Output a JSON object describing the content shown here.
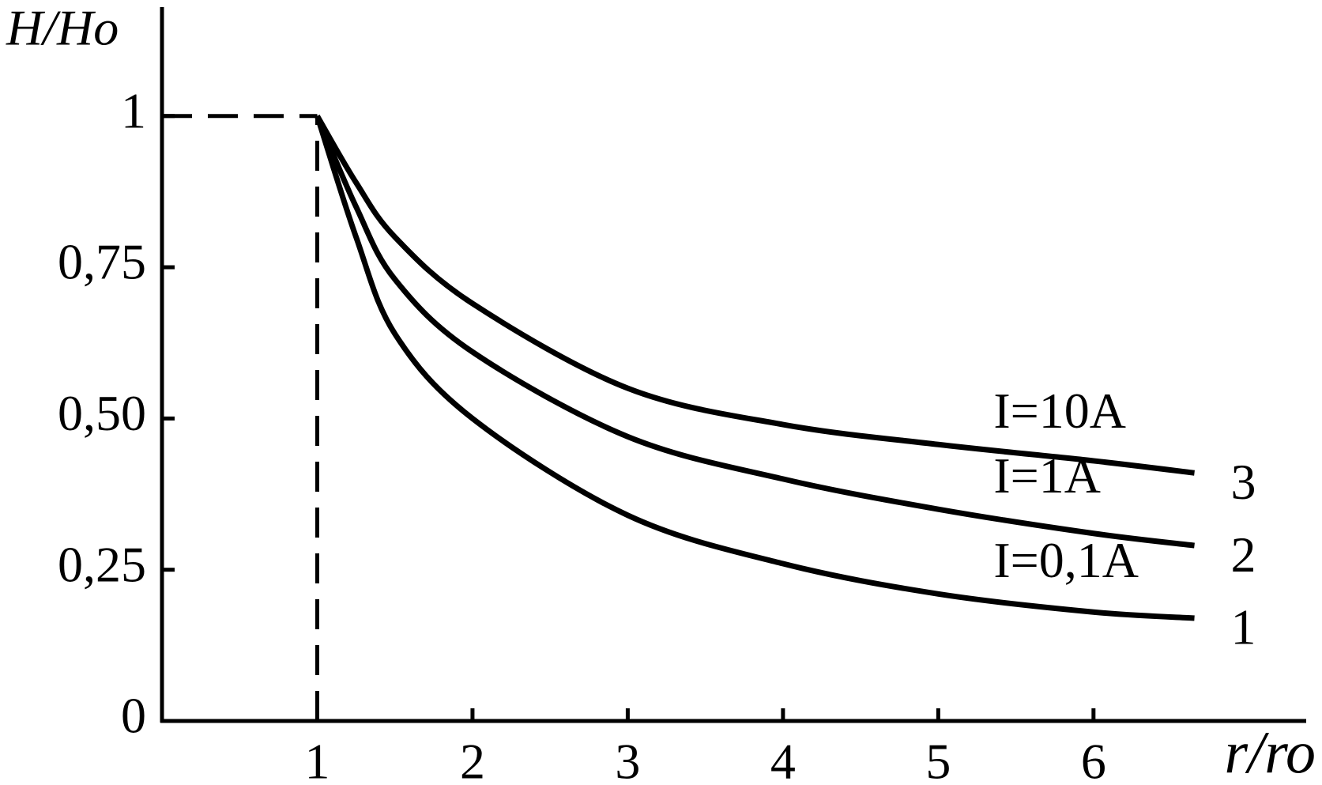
{
  "chart_data": {
    "type": "line",
    "x_label": "r/ro",
    "y_label": "H/Ho",
    "x": [
      1,
      1.25,
      1.5,
      2,
      3,
      4,
      5,
      6,
      6.65
    ],
    "series": [
      {
        "name": "I=10A",
        "label": "3",
        "color": "#000000",
        "values": [
          1,
          0.89,
          0.8,
          0.69,
          0.55,
          0.49,
          0.457,
          0.43,
          0.41
        ]
      },
      {
        "name": "I=1A",
        "label": "2",
        "color": "#000000",
        "values": [
          1,
          0.85,
          0.73,
          0.61,
          0.47,
          0.4,
          0.35,
          0.31,
          0.29
        ]
      },
      {
        "name": "I=0,1A",
        "label": "1",
        "color": "#000000",
        "values": [
          1,
          0.8,
          0.64,
          0.5,
          0.34,
          0.26,
          0.21,
          0.18,
          0.17
        ]
      }
    ],
    "xlim": [
      0,
      7.37
    ],
    "ylim": [
      0,
      1.18
    ],
    "xticks": [
      1,
      2,
      3,
      4,
      5,
      6
    ],
    "yticks": [
      0,
      {
        "value": 0.25,
        "label": "0,25"
      },
      {
        "value": 0.5,
        "label": "0,50"
      },
      {
        "value": 0.75,
        "label": "0,75"
      },
      1
    ],
    "grid": false
  }
}
